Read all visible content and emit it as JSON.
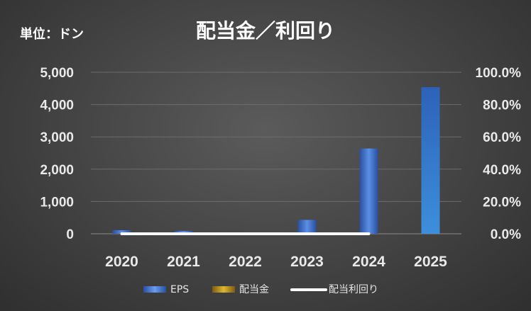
{
  "header": {
    "unit_label": "単位：ドン"
  },
  "chart_data": {
    "type": "bar",
    "title": "配当金／利回り",
    "categories": [
      "2020",
      "2021",
      "2022",
      "2023",
      "2024",
      "2025"
    ],
    "series": [
      {
        "name": "EPS",
        "type": "bar",
        "axis": "left",
        "color": "#4a7bd6",
        "values": [
          110,
          90,
          20,
          430,
          2640,
          4540
        ]
      },
      {
        "name": "配当金",
        "type": "bar",
        "axis": "left",
        "color": "#c9a227",
        "values": [
          0,
          0,
          0,
          0,
          0,
          0
        ]
      },
      {
        "name": "配当利回り",
        "type": "line",
        "axis": "right",
        "color": "#ffffff",
        "values": [
          0,
          0,
          0,
          0,
          0,
          null
        ]
      }
    ],
    "y_left": {
      "ylim": [
        0,
        5000
      ],
      "ticks": [
        "0",
        "1,000",
        "2,000",
        "3,000",
        "4,000",
        "5,000"
      ]
    },
    "y_right": {
      "ylim": [
        0,
        100
      ],
      "ticks": [
        "0.0%",
        "20.0%",
        "40.0%",
        "60.0%",
        "80.0%",
        "100.0%"
      ]
    },
    "grid": true,
    "legend_position": "bottom"
  }
}
